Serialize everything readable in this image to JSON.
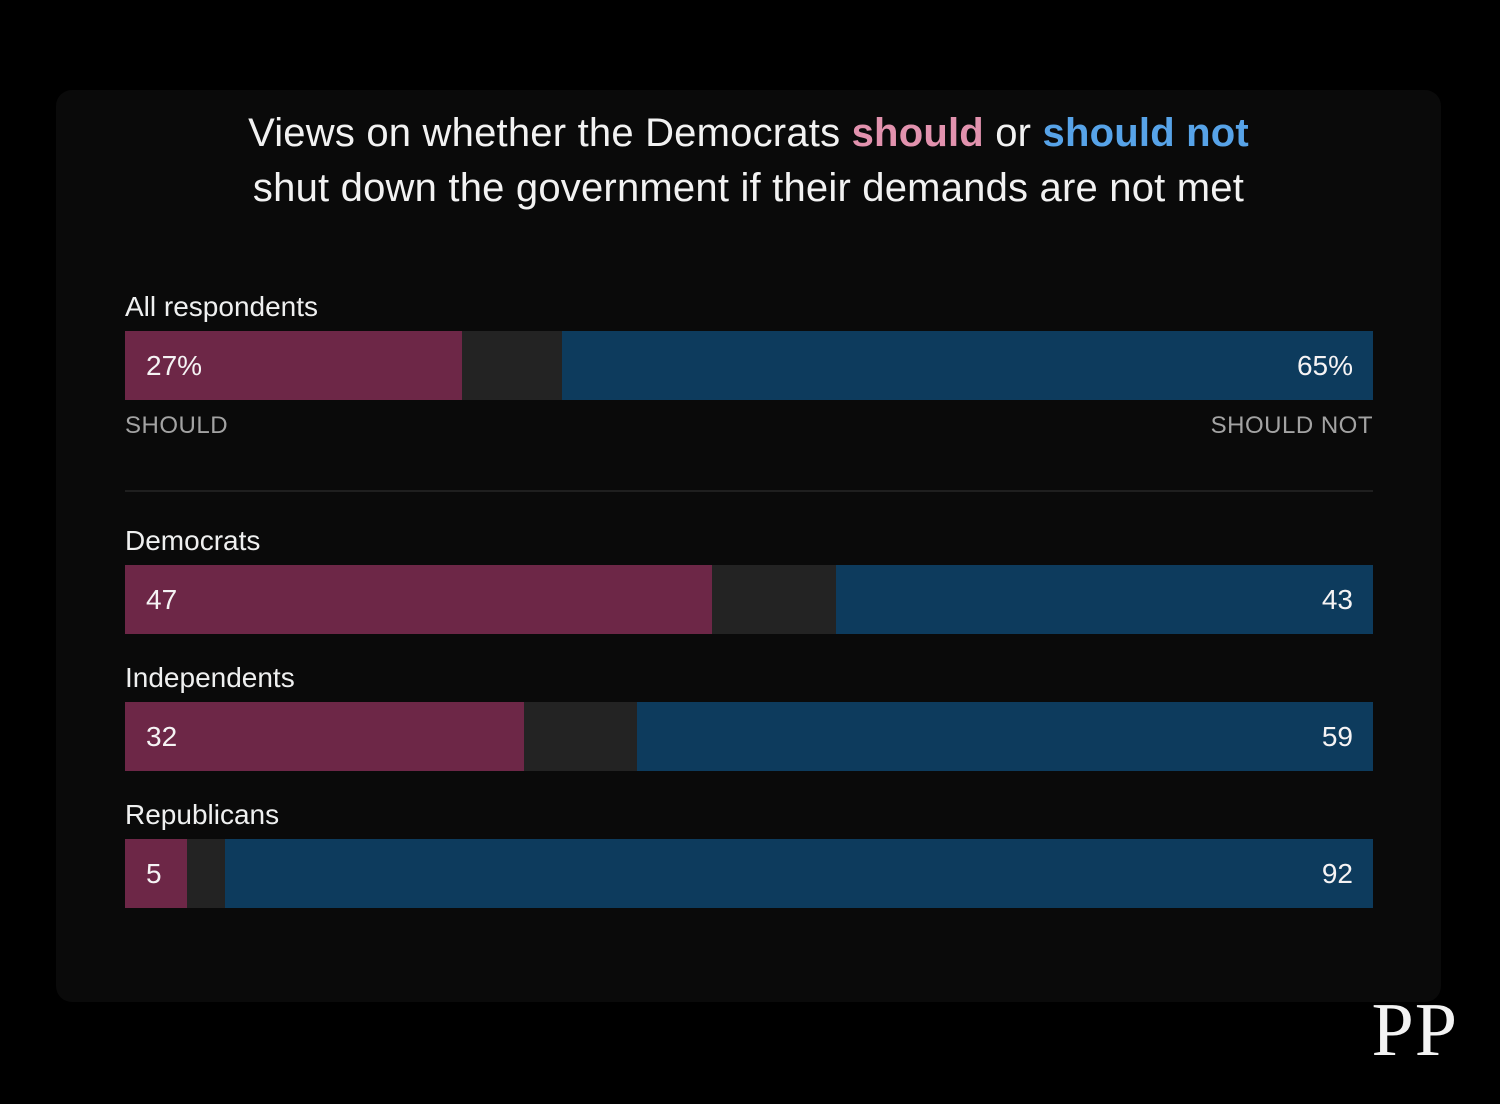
{
  "title": {
    "line1_prefix": "Views on whether the Democrats",
    "should_word": "should",
    "conjunction": "or",
    "should_not_word": "should not",
    "line2": "shut down the government if their demands are not met"
  },
  "axis": {
    "left_label": "SHOULD",
    "right_label": "SHOULD NOT"
  },
  "logo_text": "PP",
  "colors": {
    "background": "#000000",
    "panel": "#0a0a0a",
    "should_bar": "#6d2747",
    "should_not_bar": "#0d3b5d",
    "undecided_track": "#232323",
    "should_accent_text": "#e292ae",
    "should_not_accent_text": "#57a3e8",
    "divider": "#1f1f1f",
    "axis_label_text": "#a3a3a3",
    "title_text": "#f2f2f2"
  },
  "chart_data": {
    "type": "bar",
    "variant": "diverging-horizontal",
    "title": "Views on whether the Democrats should or should not shut down the government if their demands are not met",
    "categories": [
      "All respondents",
      "Democrats",
      "Independents",
      "Republicans"
    ],
    "series": [
      {
        "name": "Should",
        "color": "#6d2747",
        "values": [
          27,
          47,
          32,
          5
        ]
      },
      {
        "name": "Should not",
        "color": "#0d3b5d",
        "values": [
          65,
          43,
          59,
          92
        ]
      }
    ],
    "value_display": [
      {
        "should": "27%",
        "should_not": "65%"
      },
      {
        "should": "47",
        "should_not": "43"
      },
      {
        "should": "32",
        "should_not": "59"
      },
      {
        "should": "5",
        "should_not": "92"
      }
    ],
    "xlim": [
      0,
      100
    ],
    "legend": "inline-title",
    "grid": false
  }
}
